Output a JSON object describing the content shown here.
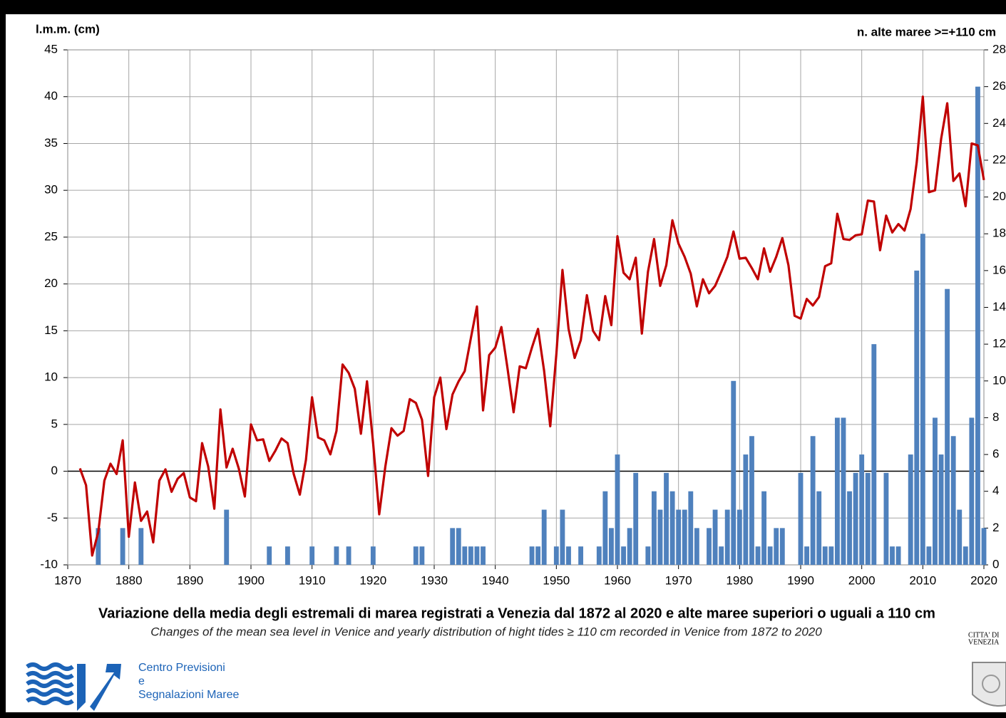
{
  "chart_data": {
    "type": "combo",
    "title": "Variazione della media degli estremali di marea registrati a Venezia dal 1872 al 2020 e alte maree superiori o uguali a 110 cm",
    "subtitle": "Changes of the mean sea level in Venice and yearly distribution of hight tides ≥ 110 cm recorded in Venice from 1872 to 2020",
    "y_label": "l.m.m. (cm)",
    "y2_label": "n. alte maree >=+110 cm",
    "x": [
      1872,
      1873,
      1874,
      1875,
      1876,
      1877,
      1878,
      1879,
      1880,
      1881,
      1882,
      1883,
      1884,
      1885,
      1886,
      1887,
      1888,
      1889,
      1890,
      1891,
      1892,
      1893,
      1894,
      1895,
      1896,
      1897,
      1898,
      1899,
      1900,
      1901,
      1902,
      1903,
      1904,
      1905,
      1906,
      1907,
      1908,
      1909,
      1910,
      1911,
      1912,
      1913,
      1914,
      1915,
      1916,
      1917,
      1918,
      1919,
      1920,
      1921,
      1922,
      1923,
      1924,
      1925,
      1926,
      1927,
      1928,
      1929,
      1930,
      1931,
      1932,
      1933,
      1934,
      1935,
      1936,
      1937,
      1938,
      1939,
      1940,
      1941,
      1942,
      1943,
      1944,
      1945,
      1946,
      1947,
      1948,
      1949,
      1950,
      1951,
      1952,
      1953,
      1954,
      1955,
      1956,
      1957,
      1958,
      1959,
      1960,
      1961,
      1962,
      1963,
      1964,
      1965,
      1966,
      1967,
      1968,
      1969,
      1970,
      1971,
      1972,
      1973,
      1974,
      1975,
      1976,
      1977,
      1978,
      1979,
      1980,
      1981,
      1982,
      1983,
      1984,
      1985,
      1986,
      1987,
      1988,
      1989,
      1990,
      1991,
      1992,
      1993,
      1994,
      1995,
      1996,
      1997,
      1998,
      1999,
      2000,
      2001,
      2002,
      2003,
      2004,
      2005,
      2006,
      2007,
      2008,
      2009,
      2010,
      2011,
      2012,
      2013,
      2014,
      2015,
      2016,
      2017,
      2018,
      2019,
      2020
    ],
    "series": [
      {
        "type": "bar",
        "axis": "y2",
        "color": "#4f81bd",
        "values": [
          0,
          0,
          0,
          2,
          0,
          0,
          0,
          2,
          0,
          0,
          2,
          0,
          0,
          0,
          0,
          0,
          0,
          0,
          0,
          0,
          0,
          0,
          0,
          0,
          3,
          0,
          0,
          0,
          0,
          0,
          0,
          1,
          0,
          0,
          1,
          0,
          0,
          0,
          1,
          0,
          0,
          0,
          1,
          0,
          1,
          0,
          0,
          0,
          1,
          0,
          0,
          0,
          0,
          0,
          0,
          1,
          1,
          0,
          0,
          0,
          0,
          2,
          2,
          1,
          1,
          1,
          1,
          0,
          0,
          0,
          0,
          0,
          0,
          0,
          1,
          1,
          3,
          0,
          1,
          3,
          1,
          0,
          1,
          0,
          0,
          1,
          4,
          2,
          6,
          1,
          2,
          5,
          0,
          1,
          4,
          3,
          5,
          4,
          3,
          3,
          4,
          2,
          0,
          2,
          3,
          1,
          3,
          10,
          3,
          6,
          7,
          1,
          4,
          1,
          2,
          2,
          0,
          0,
          5,
          1,
          7,
          4,
          1,
          1,
          8,
          8,
          4,
          5,
          6,
          5,
          12,
          0,
          5,
          1,
          1,
          0,
          6,
          16,
          18,
          1,
          8,
          6,
          15,
          7,
          3,
          1,
          8,
          26,
          2
        ]
      },
      {
        "type": "line",
        "color": "#c00000",
        "values": [
          0.3,
          -1.5,
          -9,
          -6.5,
          -1,
          0.8,
          -0.3,
          3.3,
          -7,
          -1.2,
          -5.3,
          -4.3,
          -7.6,
          -1,
          0.2,
          -2.2,
          -0.8,
          -0.2,
          -2.8,
          -3.2,
          3,
          0.5,
          -4,
          6.6,
          0.4,
          2.4,
          0.3,
          -2.7,
          5,
          3.3,
          3.4,
          1.1,
          2.2,
          3.5,
          3,
          -0.3,
          -2.5,
          1.2,
          7.9,
          3.6,
          3.3,
          1.8,
          4.3,
          11.4,
          10.5,
          8.8,
          4,
          9.6,
          3,
          -4.6,
          0.5,
          4.6,
          3.8,
          4.3,
          7.7,
          7.3,
          5.5,
          -0.5,
          7.9,
          10,
          4.5,
          8.2,
          9.6,
          10.7,
          14.2,
          17.6,
          6.5,
          12.4,
          13.2,
          15.4,
          11,
          6.3,
          11.2,
          11,
          13.2,
          15.2,
          10.7,
          4.8,
          12.5,
          21.5,
          15.2,
          12.1,
          14,
          18.8,
          15,
          14,
          18.7,
          15.6,
          25.1,
          21.2,
          20.5,
          22.8,
          14.7,
          21.3,
          24.8,
          19.8,
          22,
          26.8,
          24.3,
          22.9,
          21.1,
          17.6,
          20.5,
          19,
          19.8,
          21.3,
          22.9,
          25.6,
          22.7,
          22.8,
          21.7,
          20.5,
          23.8,
          21.3,
          22.9,
          24.9,
          22,
          16.6,
          16.3,
          18.4,
          17.7,
          18.6,
          21.9,
          22.2,
          27.5,
          24.8,
          24.7,
          25.2,
          25.3,
          28.9,
          28.8,
          23.6,
          27.3,
          25.5,
          26.4,
          25.7,
          28,
          33,
          40,
          29.8,
          30,
          35.5,
          39.3,
          31,
          31.8,
          28.3,
          35,
          34.8,
          31.1
        ]
      }
    ],
    "xlim": [
      1870,
      2020
    ],
    "xticks": [
      1870,
      1880,
      1890,
      1900,
      1910,
      1920,
      1930,
      1940,
      1950,
      1960,
      1970,
      1980,
      1990,
      2000,
      2010,
      2020
    ],
    "ylim": [
      -10,
      45
    ],
    "yticks": [
      -10,
      -5,
      0,
      5,
      10,
      15,
      20,
      25,
      30,
      35,
      40,
      45
    ],
    "y2lim": [
      0,
      28
    ],
    "y2ticks": [
      0,
      2,
      4,
      6,
      8,
      10,
      12,
      14,
      16,
      18,
      20,
      22,
      24,
      26,
      28
    ],
    "grid": true
  },
  "footer": {
    "org_lines": [
      "Centro Previsioni",
      "e",
      "Segnalazioni Maree"
    ],
    "city_lines": [
      "CITTA' DI",
      "VENEZIA"
    ]
  }
}
